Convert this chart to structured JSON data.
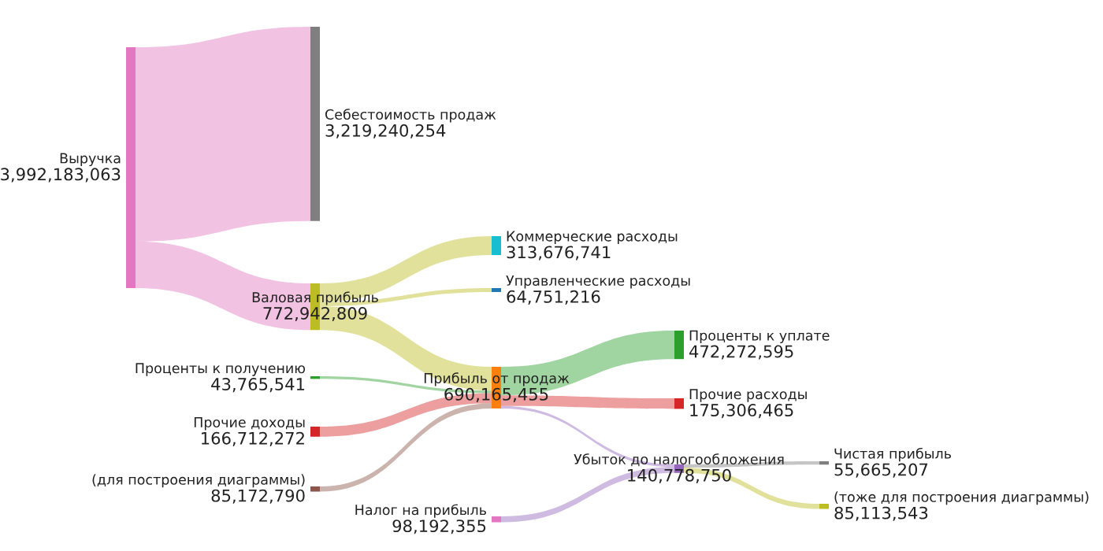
{
  "chart_data": {
    "type": "other",
    "categories": [
      "Выручка",
      "Себестоимость продаж",
      "Валовая прибыль",
      "Коммерческие расходы",
      "Управленческие расходы",
      "Прибыль от продаж",
      "Проценты к получению",
      "Прочие доходы",
      "(для построения диаграммы)",
      "Проценты к уплате",
      "Прочие расходы",
      "Убыток до налогообложения",
      "Налог на прибыль",
      "Чистая прибыль",
      "(тоже для построения диаграммы)"
    ],
    "values": [
      3992183063,
      3219240254,
      772942809,
      313676741,
      64751216,
      690165455,
      43765541,
      166712272,
      85172790,
      472272595,
      175306465,
      140778750,
      98192355,
      55665207,
      85113543
    ],
    "colors": [
      "#e377c2",
      "#7f7f7f",
      "#bcbd22",
      "#17becf",
      "#1f77b4",
      "#ff7f0e",
      "#2ca02c",
      "#d62728",
      "#8c564b",
      "#2ca02c",
      "#d62728",
      "#9467bd",
      "#e377c2",
      "#7f7f7f",
      "#bcbd22"
    ],
    "value_labels": [
      "3,992,183,063",
      "3,219,240,254",
      "772,942,809",
      "313,676,741",
      "64,751,216",
      "690,165,455",
      "43,765,541",
      "166,712,272",
      "85,172,790",
      "472,272,595",
      "175,306,465",
      "140,778,750",
      "98,192,355",
      "55,665,207",
      "85,113,543"
    ]
  }
}
